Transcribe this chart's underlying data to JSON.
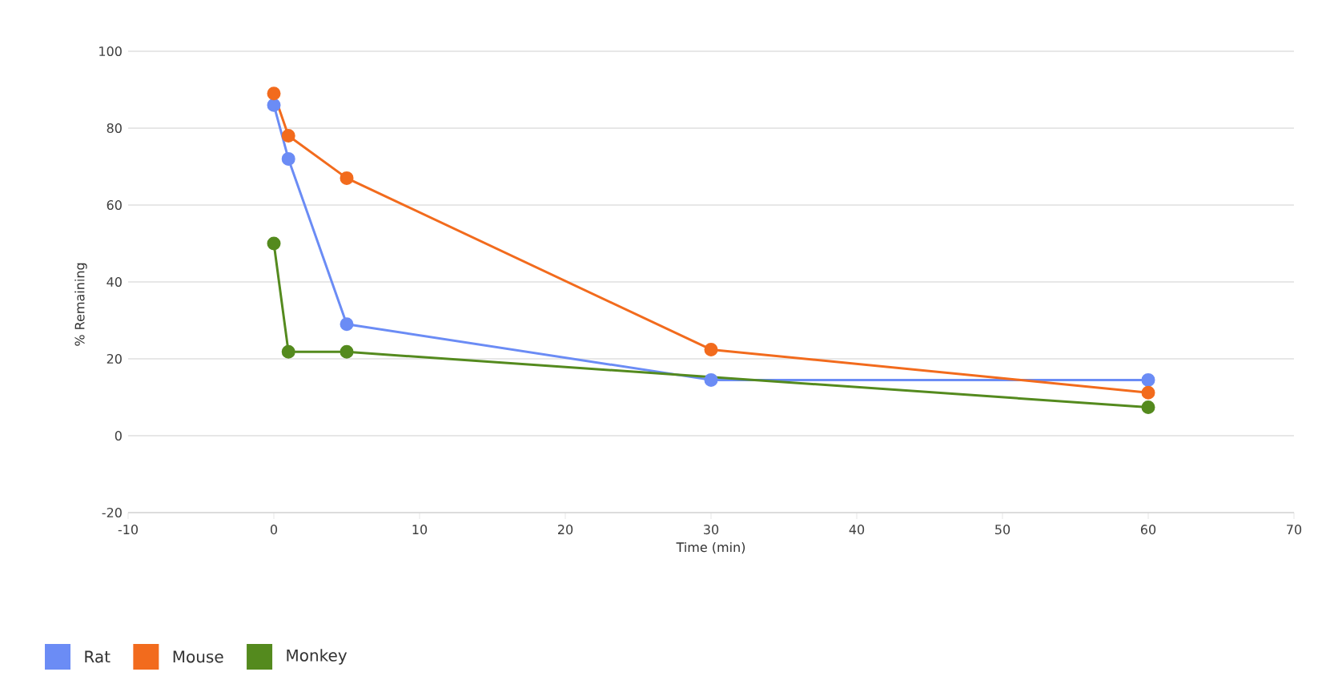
{
  "chart_data": {
    "type": "line",
    "xlabel": "Time (min)",
    "ylabel": "% Remaining",
    "xlim": [
      -10,
      70
    ],
    "ylim": [
      -20,
      100
    ],
    "xticks": [
      -10,
      0,
      10,
      20,
      30,
      40,
      50,
      60,
      70
    ],
    "yticks": [
      -20,
      0,
      20,
      40,
      60,
      80,
      100
    ],
    "grid": "y",
    "legend": "bottom left",
    "marker": "circle",
    "line_style": "solid",
    "series": [
      {
        "name": "Rat",
        "color": "#6b8cf5",
        "x": [
          0,
          1,
          5,
          30,
          60
        ],
        "values": [
          86,
          72,
          29,
          14.5,
          14.5
        ]
      },
      {
        "name": "Mouse",
        "color": "#f26b1d",
        "x": [
          0,
          1,
          5,
          30,
          60
        ],
        "values": [
          89,
          78,
          67,
          22.4,
          11.2
        ]
      },
      {
        "name": "Monkey",
        "color": "#548a1e",
        "x": [
          0,
          1,
          5,
          60
        ],
        "values": [
          50,
          21.8,
          21.8,
          7.4
        ]
      }
    ]
  }
}
